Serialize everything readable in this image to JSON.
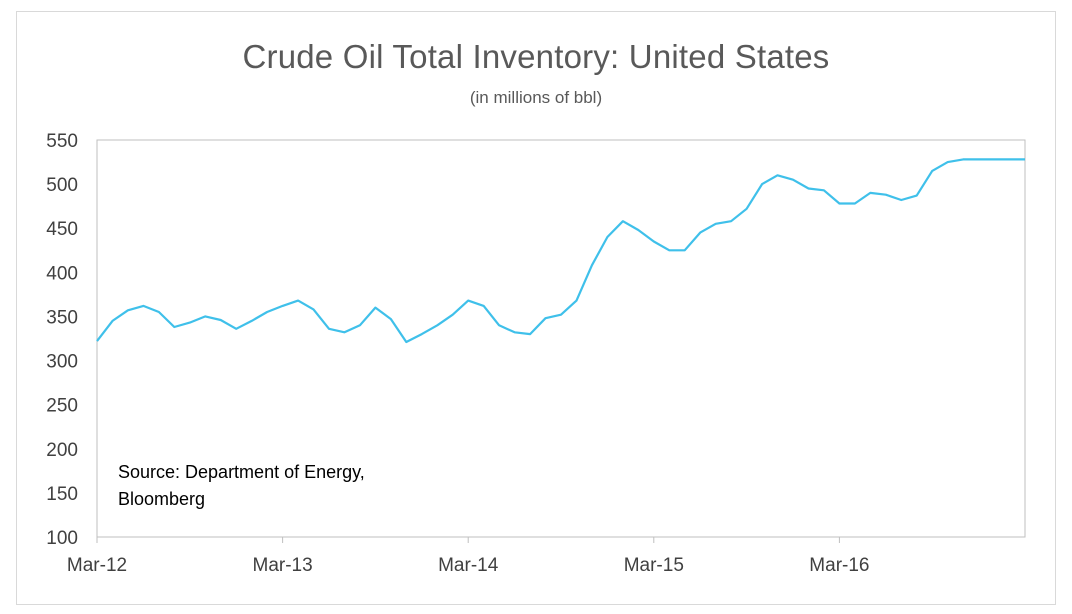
{
  "chart_data": {
    "type": "line",
    "title": "Crude Oil Total Inventory: United States",
    "subtitle": "(in millions of bbl)",
    "xlabel": "",
    "ylabel": "",
    "ylim": [
      100,
      550
    ],
    "y_ticks": [
      100,
      150,
      200,
      250,
      300,
      350,
      400,
      450,
      500,
      550
    ],
    "y_tick_labels": [
      "100",
      "150",
      "200",
      "250",
      "300",
      "350",
      "400",
      "450",
      "500",
      "550"
    ],
    "x_ticks": [
      "2012-03",
      "2013-03",
      "2014-03",
      "2015-03",
      "2016-03"
    ],
    "x_tick_labels": [
      "Mar-12",
      "Mar-13",
      "Mar-14",
      "Mar-15",
      "Mar-16"
    ],
    "xlim": [
      "2012-03",
      "2017-03"
    ],
    "grid": false,
    "line_color": "#3fc0ea",
    "series": [
      {
        "x": [
          "2012-03",
          "2012-04",
          "2012-05",
          "2012-06",
          "2012-07",
          "2012-08",
          "2012-09",
          "2012-10",
          "2012-11",
          "2012-12",
          "2013-01",
          "2013-02",
          "2013-03",
          "2013-04",
          "2013-05",
          "2013-06",
          "2013-07",
          "2013-08",
          "2013-09",
          "2013-10",
          "2013-11",
          "2013-12",
          "2014-01",
          "2014-02",
          "2014-03",
          "2014-04",
          "2014-05",
          "2014-06",
          "2014-07",
          "2014-08",
          "2014-09",
          "2014-10",
          "2014-11",
          "2014-12",
          "2015-01",
          "2015-02",
          "2015-03",
          "2015-04",
          "2015-05",
          "2015-06",
          "2015-07",
          "2015-08",
          "2015-09",
          "2015-10",
          "2015-11",
          "2015-12",
          "2016-01",
          "2016-02",
          "2016-03",
          "2016-04",
          "2016-05",
          "2016-06",
          "2016-07",
          "2016-08",
          "2016-09",
          "2016-10",
          "2016-11",
          "2016-12",
          "2017-01",
          "2017-02",
          "2017-03"
        ],
        "y": [
          322,
          345,
          357,
          362,
          355,
          338,
          343,
          350,
          346,
          336,
          345,
          355,
          362,
          368,
          358,
          336,
          332,
          340,
          360,
          347,
          321,
          330,
          340,
          352,
          368,
          362,
          340,
          332,
          330,
          348,
          352,
          368,
          408,
          440,
          458,
          448,
          435,
          425,
          425,
          445,
          455,
          458,
          472,
          500,
          510,
          505,
          495,
          493,
          478,
          478,
          490,
          488,
          482,
          487,
          515,
          525,
          528,
          528,
          528,
          528,
          528
        ]
      }
    ]
  },
  "source_line1": "Source: Department of Energy,",
  "source_line2": "Bloomberg"
}
